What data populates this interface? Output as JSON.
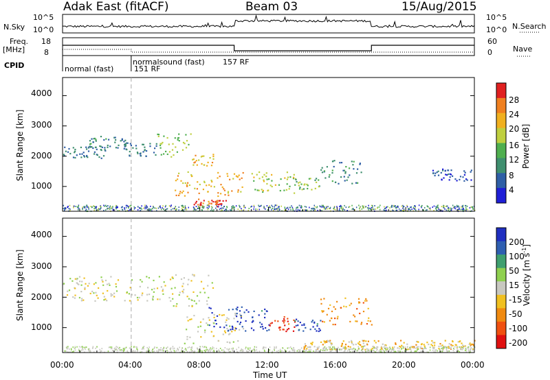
{
  "header": {
    "station": "Adak East (fitACF)",
    "beam": "Beam 03",
    "date": "15/Aug/2015"
  },
  "panels": {
    "nsky_label": "N.Sky",
    "nsky_ticks": [
      "10^5",
      "10^0"
    ],
    "nsearch_label": "N.Search",
    "nsearch_ticks": [
      "10^5",
      "10^0"
    ],
    "freq_label": "Freq.",
    "freq_unit": "[MHz]",
    "freq_ticks": [
      "18",
      "8"
    ],
    "nave_label": "Nave",
    "nave_ticks": [
      "60",
      "0"
    ],
    "cpid_label": "CPID",
    "cpid_modes": [
      {
        "name": "normal (fast)",
        "id": "151 RF"
      },
      {
        "name": "normalsound (fast)",
        "id": "157 RF"
      }
    ]
  },
  "chart_data": [
    {
      "type": "heatmap",
      "title": "",
      "ylabel": "Slant Range [km]",
      "xlabel": "",
      "xlim": [
        "00:00",
        "24:00"
      ],
      "ylim": [
        180,
        4600
      ],
      "yticks": [
        "1000",
        "2000",
        "3000",
        "4000"
      ],
      "colorbar_label": "Power [dB]",
      "colorbar_ticks": [
        "4",
        "8",
        "12",
        "16",
        "20",
        "24",
        "28"
      ],
      "colorbar_range": [
        0,
        30
      ],
      "colorscale": [
        "#1f1fd6",
        "#2f5fa6",
        "#3f8f6f",
        "#4faf4f",
        "#bfcf3f",
        "#f0b020",
        "#f08020",
        "#e02020"
      ],
      "regions": [
        {
          "t0": 0.0,
          "t1": 2.5,
          "r0": 1950,
          "r1": 2350,
          "level": 0.25
        },
        {
          "t0": 1.5,
          "t1": 3.8,
          "r0": 2300,
          "r1": 2700,
          "level": 0.3
        },
        {
          "t0": 3.5,
          "t1": 5.5,
          "r0": 2000,
          "r1": 2450,
          "level": 0.25
        },
        {
          "t0": 5.5,
          "t1": 7.5,
          "r0": 2000,
          "r1": 2800,
          "level": 0.5
        },
        {
          "t0": 7.5,
          "t1": 8.8,
          "r0": 1700,
          "r1": 2100,
          "level": 0.65
        },
        {
          "t0": 6.5,
          "t1": 10.5,
          "r0": 700,
          "r1": 1500,
          "level": 0.7
        },
        {
          "t0": 7.5,
          "t1": 9.5,
          "r0": 350,
          "r1": 600,
          "level": 0.85
        },
        {
          "t0": 11.0,
          "t1": 13.5,
          "r0": 800,
          "r1": 1500,
          "level": 0.55
        },
        {
          "t0": 13.5,
          "t1": 15.0,
          "r0": 900,
          "r1": 1300,
          "level": 0.45
        },
        {
          "t0": 15.0,
          "t1": 17.5,
          "r0": 1100,
          "r1": 1900,
          "level": 0.3
        },
        {
          "t0": 21.5,
          "t1": 23.8,
          "r0": 1200,
          "r1": 1600,
          "level": 0.15
        }
      ]
    },
    {
      "type": "heatmap",
      "title": "",
      "ylabel": "Slant Range [km]",
      "xlabel": "Time UT",
      "xlim": [
        "00:00",
        "24:00"
      ],
      "ylim": [
        180,
        4600
      ],
      "yticks": [
        "1000",
        "2000",
        "3000",
        "4000"
      ],
      "xticks": [
        "00:00",
        "04:00",
        "08:00",
        "12:00",
        "16:00",
        "20:00",
        "00:00"
      ],
      "colorbar_label": "Velocity [m s",
      "colorbar_label_sup": "-1",
      "colorbar_label_end": "]",
      "colorbar_ticks": [
        "200",
        "100",
        "50",
        "15",
        "-15",
        "-50",
        "-100",
        "-200"
      ],
      "colorbar_range": [
        -250,
        250
      ],
      "colorscale": [
        "#e01010",
        "#f05010",
        "#f08a10",
        "#f0c020",
        "#c8c8c0",
        "#8fd04f",
        "#3f9f6f",
        "#2f5fb0",
        "#1f2fc0"
      ],
      "regions": [
        {
          "t0": 0.0,
          "t1": 5.5,
          "r0": 1900,
          "r1": 2700,
          "level": 0.5
        },
        {
          "t0": 5.5,
          "t1": 8.8,
          "r0": 1700,
          "r1": 2800,
          "level": 0.5
        },
        {
          "t0": 7.0,
          "t1": 10.5,
          "r0": 500,
          "r1": 1500,
          "level": 0.5
        },
        {
          "t0": 8.5,
          "t1": 12.0,
          "r0": 900,
          "r1": 1700,
          "level": 0.9
        },
        {
          "t0": 12.0,
          "t1": 13.5,
          "r0": 900,
          "r1": 1400,
          "level": 0.15
        },
        {
          "t0": 13.5,
          "t1": 15.0,
          "r0": 900,
          "r1": 1300,
          "level": 0.88
        },
        {
          "t0": 15.0,
          "t1": 18.0,
          "r0": 1100,
          "r1": 2000,
          "level": 0.3
        },
        {
          "t0": 14.0,
          "t1": 24.0,
          "r0": 300,
          "r1": 600,
          "level": 0.4
        }
      ]
    }
  ]
}
